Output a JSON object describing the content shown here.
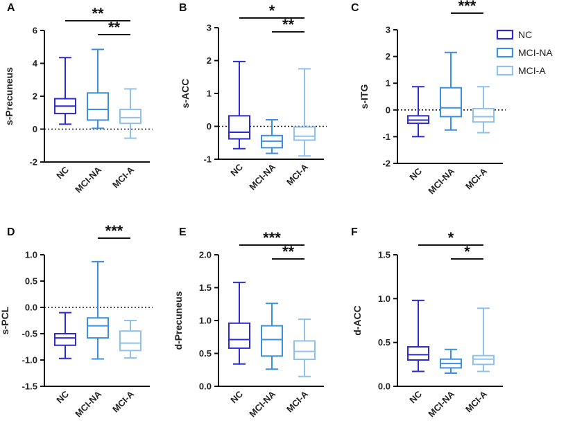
{
  "legend": [
    {
      "name": "NC",
      "color": "#2b2bd0"
    },
    {
      "name": "MCI-NA",
      "color": "#3b8fe0"
    },
    {
      "name": "MCI-A",
      "color": "#8fc1ef"
    }
  ],
  "chart_data": [
    {
      "type": "boxplot",
      "panel": "A",
      "ylabel": "s-Precuneus",
      "categories": [
        "NC",
        "MCI-NA",
        "MCI-A"
      ],
      "ylim": [
        -2,
        6
      ],
      "yticks": [
        -2,
        0,
        2,
        4,
        6
      ],
      "yticklabels": [
        "-2",
        "0",
        "2",
        "4",
        "6"
      ],
      "refline": 0,
      "boxes": [
        {
          "min": 0.3,
          "q1": 0.95,
          "median": 1.4,
          "q3": 1.85,
          "max": 4.35
        },
        {
          "min": 0.05,
          "q1": 0.55,
          "median": 1.2,
          "q3": 2.2,
          "max": 4.85
        },
        {
          "min": -0.55,
          "q1": 0.35,
          "median": 0.7,
          "q3": 1.2,
          "max": 2.45
        }
      ],
      "significance": [
        {
          "from": 0,
          "to": 2,
          "label": "**"
        },
        {
          "from": 1,
          "to": 2,
          "label": "**"
        }
      ]
    },
    {
      "type": "boxplot",
      "panel": "B",
      "ylabel": "s-ACC",
      "categories": [
        "NC",
        "MCI-NA",
        "MCI-A"
      ],
      "ylim": [
        -1,
        3
      ],
      "yticks": [
        -1,
        0,
        1,
        2,
        3
      ],
      "yticklabels": [
        "-1",
        "0",
        "1",
        "2",
        "3"
      ],
      "refline": 0,
      "boxes": [
        {
          "min": -0.68,
          "q1": -0.38,
          "median": -0.18,
          "q3": 0.32,
          "max": 1.97
        },
        {
          "min": -0.82,
          "q1": -0.65,
          "median": -0.45,
          "q3": -0.28,
          "max": 0.2
        },
        {
          "min": -0.9,
          "q1": -0.42,
          "median": -0.3,
          "q3": -0.02,
          "max": 1.75
        }
      ],
      "significance": [
        {
          "from": 0,
          "to": 2,
          "label": "*"
        },
        {
          "from": 1,
          "to": 2,
          "label": "**"
        }
      ]
    },
    {
      "type": "boxplot",
      "panel": "C",
      "ylabel": "s-ITG",
      "categories": [
        "NC",
        "MCI-NA",
        "MCI-A"
      ],
      "ylim": [
        -2,
        3
      ],
      "yticks": [
        -2,
        -1,
        0,
        1,
        2,
        3
      ],
      "yticklabels": [
        "-2",
        "-1",
        "0",
        "1",
        "2",
        "3"
      ],
      "refline": 0,
      "boxes": [
        {
          "min": -1.0,
          "q1": -0.5,
          "median": -0.38,
          "q3": -0.22,
          "max": 0.87
        },
        {
          "min": -0.75,
          "q1": -0.25,
          "median": 0.08,
          "q3": 0.83,
          "max": 2.15
        },
        {
          "min": -0.85,
          "q1": -0.45,
          "median": -0.25,
          "q3": 0.05,
          "max": 0.87
        }
      ],
      "significance": [
        {
          "from": 1,
          "to": 2,
          "label": "***"
        }
      ]
    },
    {
      "type": "boxplot",
      "panel": "D",
      "ylabel": "s-PCL",
      "categories": [
        "NC",
        "MCI-NA",
        "MCI-A"
      ],
      "ylim": [
        -1.5,
        1.0
      ],
      "yticks": [
        -1.5,
        -1.0,
        -0.5,
        0.0,
        0.5,
        1.0
      ],
      "yticklabels": [
        "-1.5",
        "-1.0",
        "-0.5",
        "0.0",
        "0.5",
        "1.0"
      ],
      "refline": 0,
      "boxes": [
        {
          "min": -0.97,
          "q1": -0.72,
          "median": -0.58,
          "q3": -0.5,
          "max": -0.1
        },
        {
          "min": -0.98,
          "q1": -0.58,
          "median": -0.35,
          "q3": -0.2,
          "max": 0.87
        },
        {
          "min": -0.96,
          "q1": -0.82,
          "median": -0.68,
          "q3": -0.45,
          "max": -0.25
        }
      ],
      "significance": [
        {
          "from": 1,
          "to": 2,
          "label": "***"
        }
      ]
    },
    {
      "type": "boxplot",
      "panel": "E",
      "ylabel": "d-Precuneus",
      "categories": [
        "NC",
        "MCI-NA",
        "MCI-A"
      ],
      "ylim": [
        0.0,
        2.0
      ],
      "yticks": [
        0.0,
        0.5,
        1.0,
        1.5,
        2.0
      ],
      "yticklabels": [
        "0.0",
        "0.5",
        "1.0",
        "1.5",
        "2.0"
      ],
      "refline": null,
      "boxes": [
        {
          "min": 0.34,
          "q1": 0.58,
          "median": 0.71,
          "q3": 0.96,
          "max": 1.58
        },
        {
          "min": 0.26,
          "q1": 0.46,
          "median": 0.71,
          "q3": 0.92,
          "max": 1.26
        },
        {
          "min": 0.15,
          "q1": 0.41,
          "median": 0.53,
          "q3": 0.69,
          "max": 1.02
        }
      ],
      "significance": [
        {
          "from": 0,
          "to": 2,
          "label": "***"
        },
        {
          "from": 1,
          "to": 2,
          "label": "**"
        }
      ]
    },
    {
      "type": "boxplot",
      "panel": "F",
      "ylabel": "d-ACC",
      "categories": [
        "NC",
        "MCI-NA",
        "MCI-A"
      ],
      "ylim": [
        0.0,
        1.5
      ],
      "yticks": [
        0.0,
        0.5,
        1.0,
        1.5
      ],
      "yticklabels": [
        "0.0",
        "0.5",
        "1.0",
        "1.5"
      ],
      "refline": null,
      "boxes": [
        {
          "min": 0.17,
          "q1": 0.3,
          "median": 0.36,
          "q3": 0.45,
          "max": 0.98
        },
        {
          "min": 0.15,
          "q1": 0.21,
          "median": 0.26,
          "q3": 0.31,
          "max": 0.42
        },
        {
          "min": 0.17,
          "q1": 0.25,
          "median": 0.31,
          "q3": 0.35,
          "max": 0.89
        }
      ],
      "significance": [
        {
          "from": 0,
          "to": 2,
          "label": "*"
        },
        {
          "from": 1,
          "to": 2,
          "label": "*"
        }
      ]
    }
  ]
}
